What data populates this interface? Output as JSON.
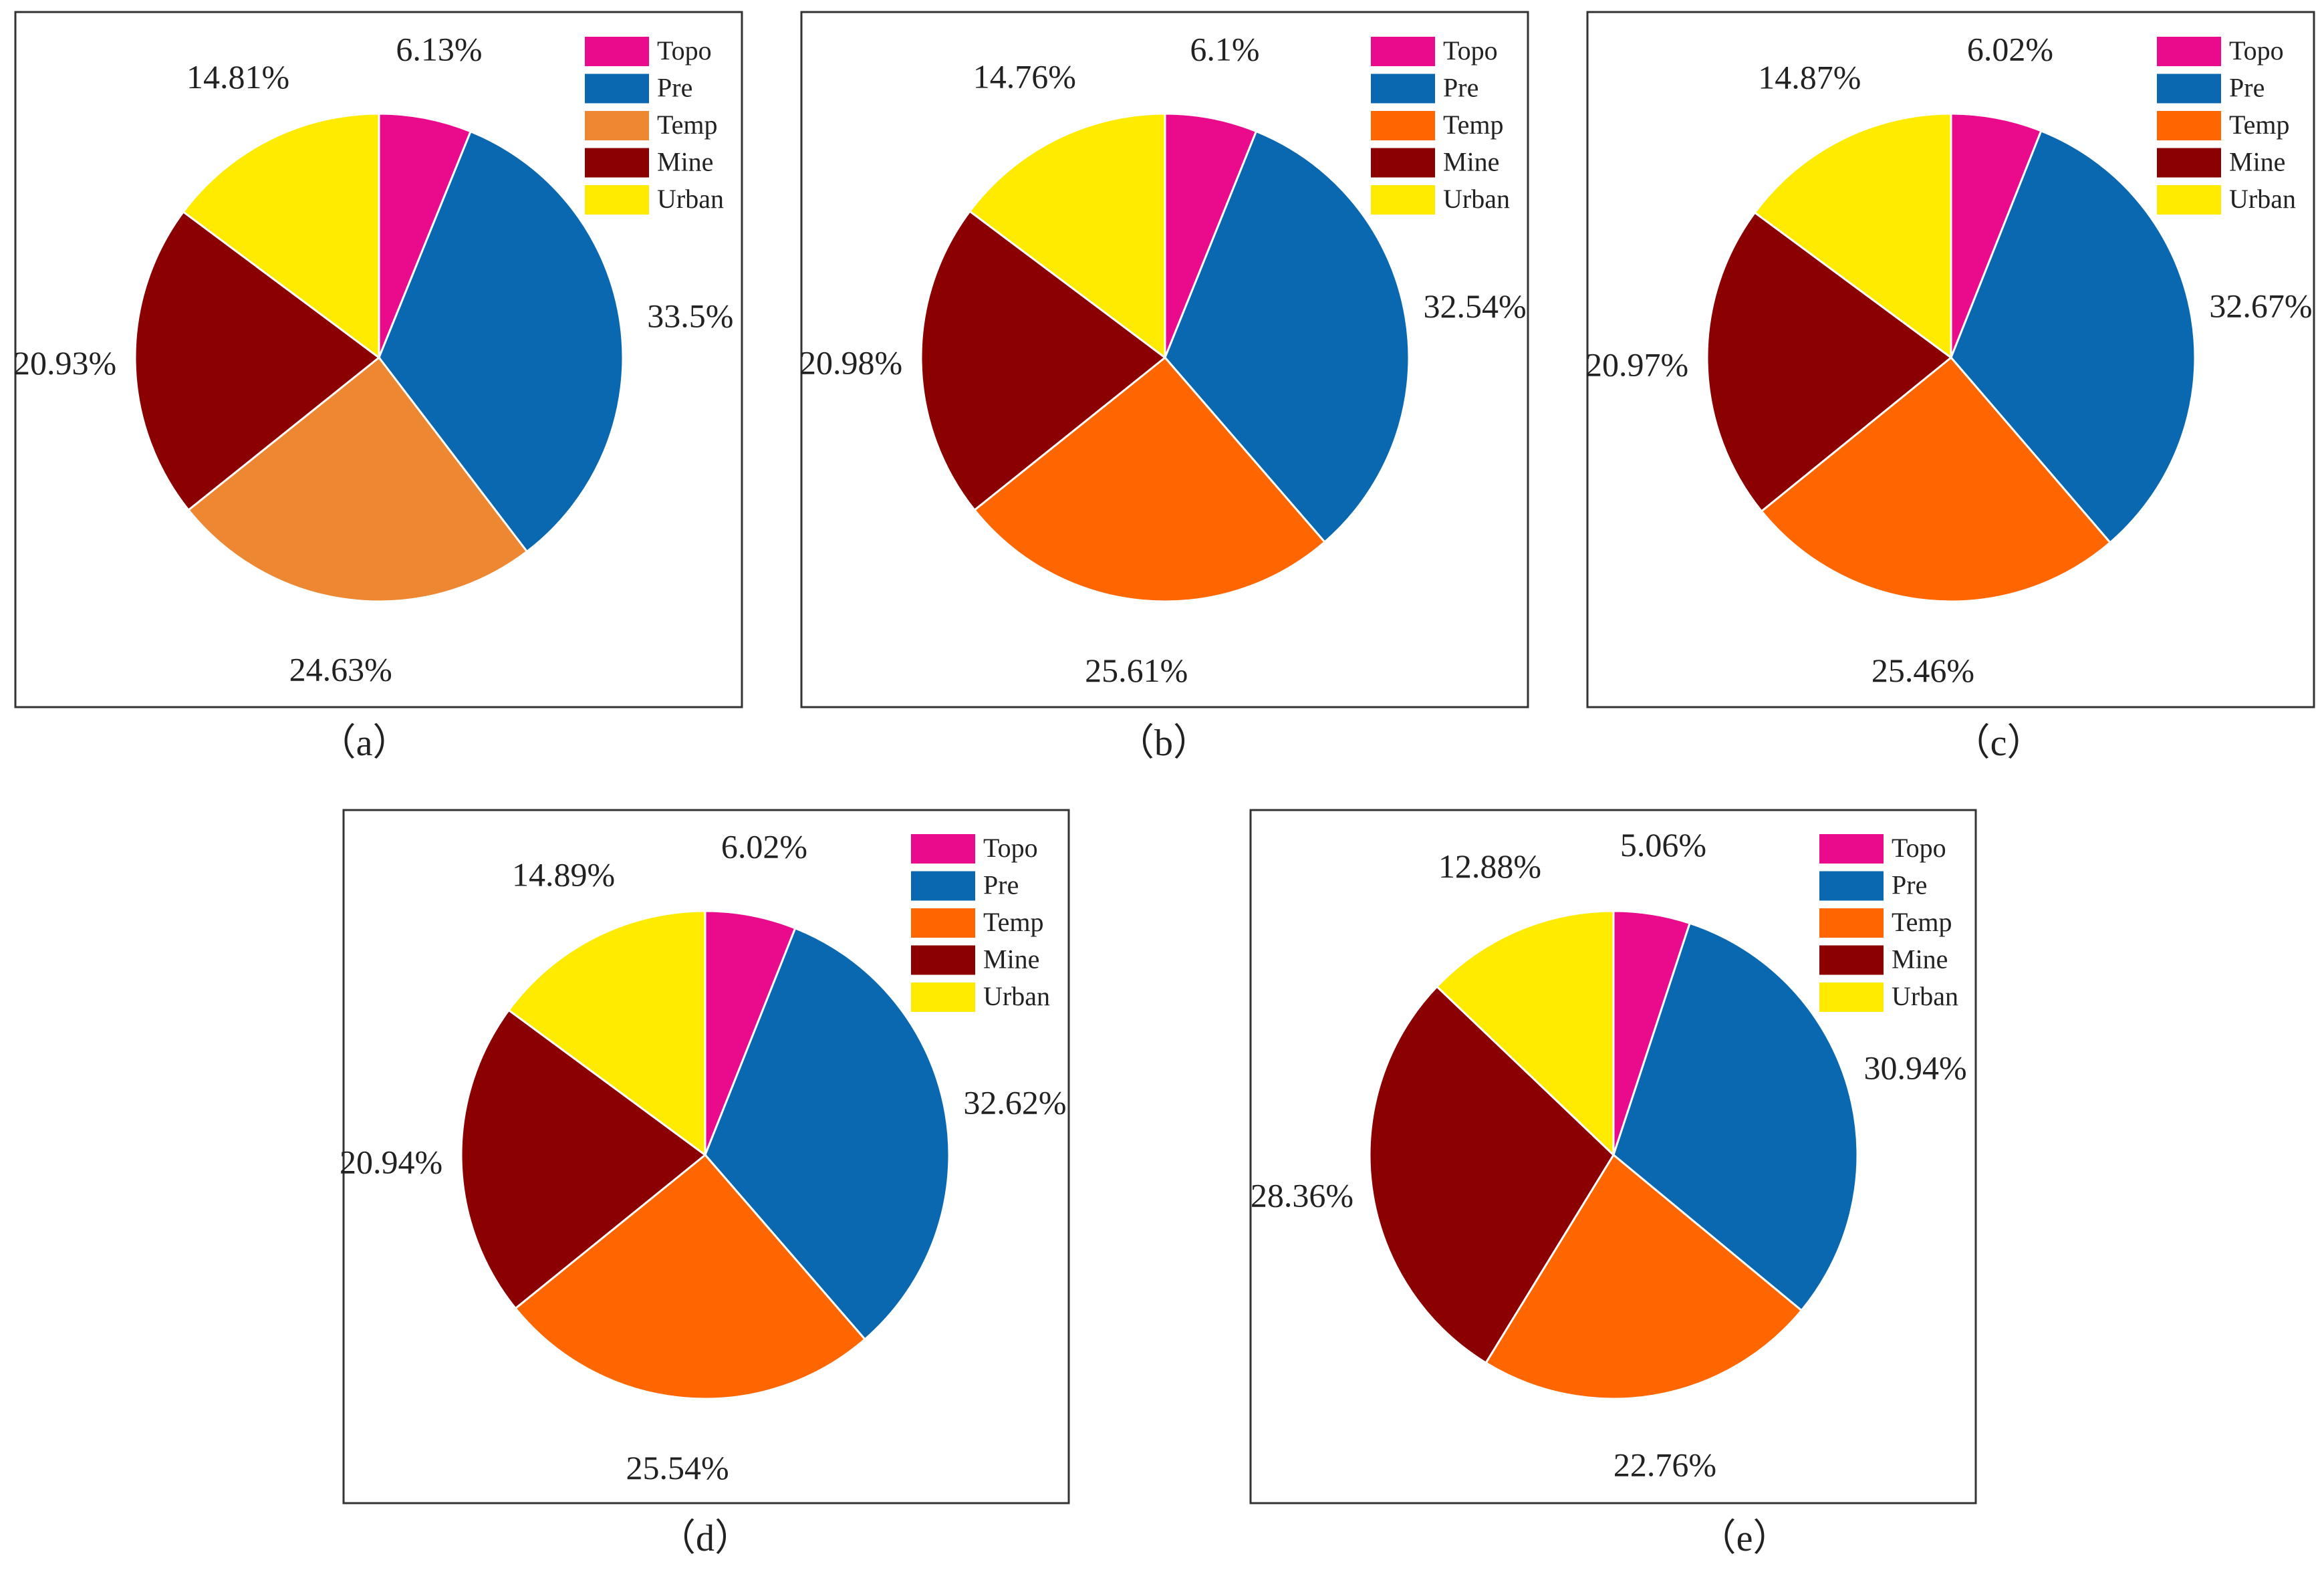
{
  "series_colors": {
    "Topo": "#EA0A8C",
    "Pre": "#0A68B0",
    "Temp": "#FF6600",
    "Mine": "#8B0000",
    "Urban": "#FFEB00"
  },
  "chart_data": [
    {
      "type": "pie",
      "caption": "（a）",
      "legend_position": "top-right",
      "labels": [
        "Topo",
        "Pre",
        "Temp",
        "Mine",
        "Urban"
      ],
      "values": [
        6.13,
        33.5,
        24.63,
        20.93,
        14.81
      ],
      "value_labels": [
        "6.13%",
        "33.5%",
        "24.63%",
        "20.93%",
        "14.81%"
      ],
      "colors": [
        "#EA0A8C",
        "#0A68B0",
        "#EE8731",
        "#8B0000",
        "#FFEB00"
      ]
    },
    {
      "type": "pie",
      "caption": "（b）",
      "legend_position": "top-right",
      "labels": [
        "Topo",
        "Pre",
        "Temp",
        "Mine",
        "Urban"
      ],
      "values": [
        6.1,
        32.54,
        25.61,
        20.98,
        14.76
      ],
      "value_labels": [
        "6.1%",
        "32.54%",
        "25.61%",
        "20.98%",
        "14.76%"
      ],
      "colors": [
        "#EA0A8C",
        "#0A68B0",
        "#FF6600",
        "#8B0000",
        "#FFEB00"
      ]
    },
    {
      "type": "pie",
      "caption": "（c）",
      "legend_position": "top-right",
      "labels": [
        "Topo",
        "Pre",
        "Temp",
        "Mine",
        "Urban"
      ],
      "values": [
        6.02,
        32.67,
        25.46,
        20.97,
        14.87
      ],
      "value_labels": [
        "6.02%",
        "32.67%",
        "25.46%",
        "20.97%",
        "14.87%"
      ],
      "colors": [
        "#EA0A8C",
        "#0A68B0",
        "#FF6600",
        "#8B0000",
        "#FFEB00"
      ]
    },
    {
      "type": "pie",
      "caption": "（d）",
      "legend_position": "top-right",
      "labels": [
        "Topo",
        "Pre",
        "Temp",
        "Mine",
        "Urban"
      ],
      "values": [
        6.02,
        32.62,
        25.54,
        20.94,
        14.89
      ],
      "value_labels": [
        "6.02%",
        "32.62%",
        "25.54%",
        "20.94%",
        "14.89%"
      ],
      "colors": [
        "#EA0A8C",
        "#0A68B0",
        "#FF6600",
        "#8B0000",
        "#FFEB00"
      ]
    },
    {
      "type": "pie",
      "caption": "（e）",
      "legend_position": "top-right",
      "labels": [
        "Topo",
        "Pre",
        "Temp",
        "Mine",
        "Urban"
      ],
      "values": [
        5.06,
        30.94,
        22.76,
        28.36,
        12.88
      ],
      "value_labels": [
        "5.06%",
        "30.94%",
        "22.76%",
        "28.36%",
        "12.88%"
      ],
      "colors": [
        "#EA0A8C",
        "#0A68B0",
        "#FF6600",
        "#8B0000",
        "#FFEB00"
      ]
    }
  ]
}
